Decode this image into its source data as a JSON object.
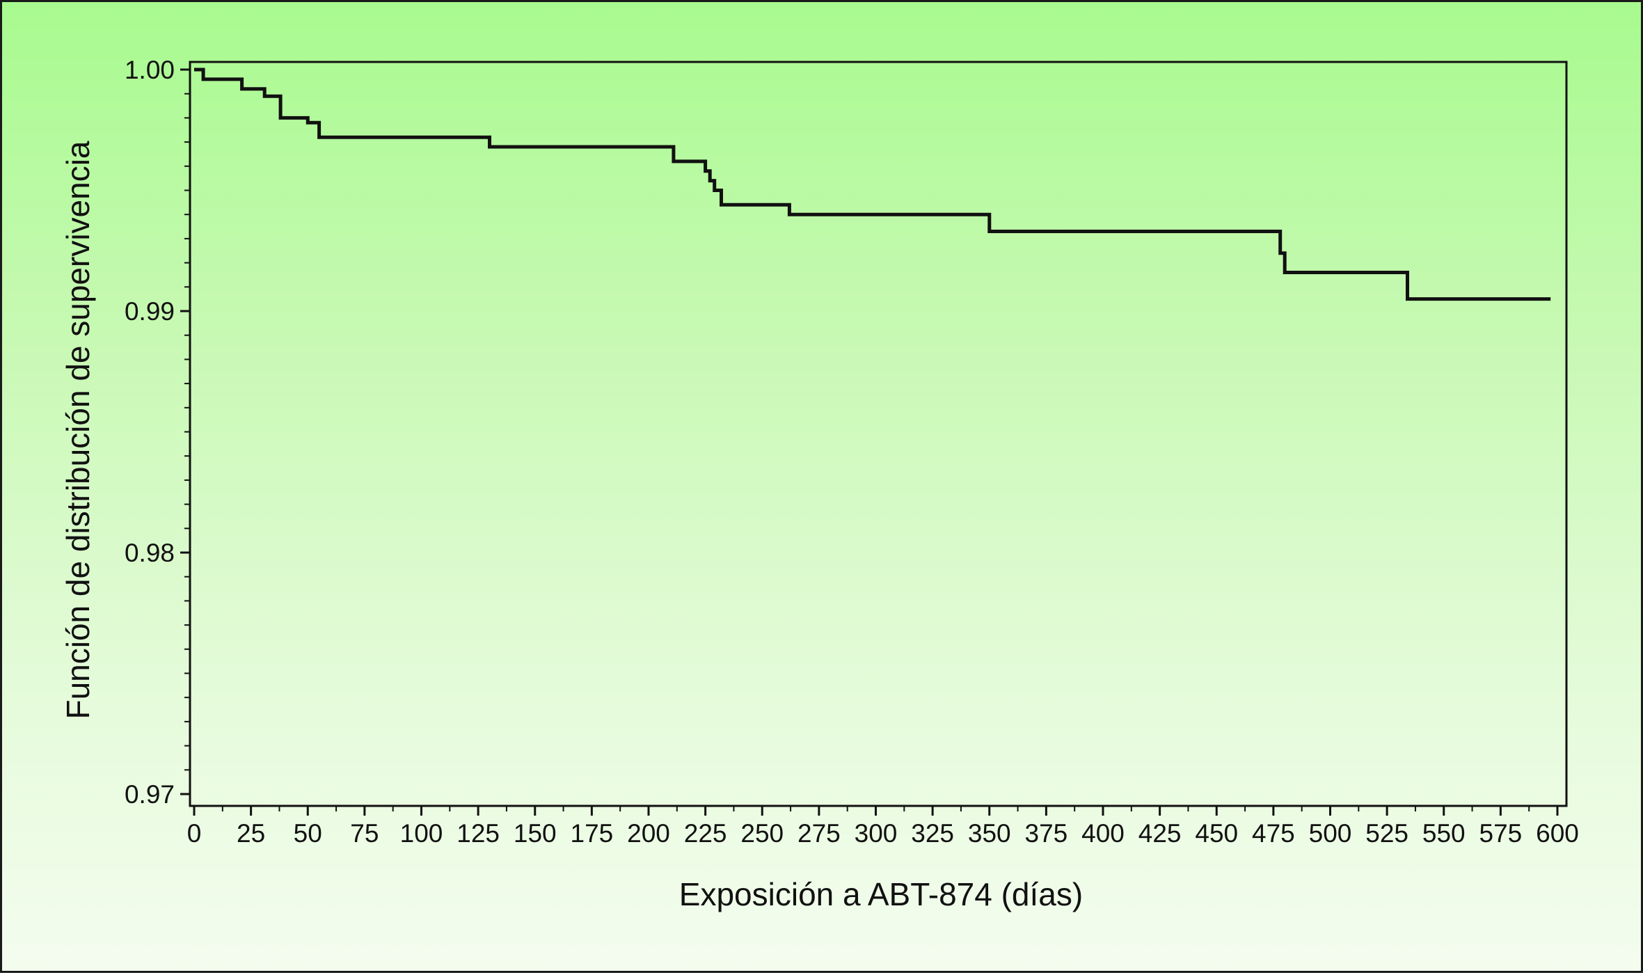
{
  "chart_data": {
    "type": "line",
    "step": true,
    "xlabel": "Exposición a ABT-874 (días)",
    "ylabel": "Función de distribución de supervivencia",
    "xlim": [
      0,
      600
    ],
    "ylim": [
      0.97,
      1.0
    ],
    "x_ticks": [
      0,
      25,
      50,
      75,
      100,
      125,
      150,
      175,
      200,
      225,
      250,
      275,
      300,
      325,
      350,
      375,
      400,
      425,
      450,
      475,
      500,
      525,
      550,
      575,
      600
    ],
    "x_tick_labels": [
      "0",
      "25",
      "50",
      "75",
      "100",
      "125",
      "150",
      "175",
      "200",
      "225",
      "250",
      "275",
      "300",
      "325",
      "350",
      "375",
      "400",
      "425",
      "450",
      "475",
      "500",
      "525",
      "550",
      "575",
      "600"
    ],
    "y_ticks": [
      0.97,
      0.98,
      0.99,
      1.0
    ],
    "y_tick_labels": [
      "0.97",
      "0.98",
      "0.99",
      "1.00"
    ],
    "grid": false,
    "legend": "none",
    "colors": {
      "line": "#111111",
      "background_top": "#a8fa8f",
      "background_bottom": "#f4fcef"
    },
    "series": [
      {
        "x": [
          0,
          4,
          21,
          31,
          38,
          50,
          55,
          130,
          211,
          225,
          227,
          229,
          232,
          262,
          350,
          478,
          480,
          534,
          597
        ],
        "y": [
          1.0,
          0.9996,
          0.9992,
          0.9989,
          0.998,
          0.9978,
          0.9972,
          0.9968,
          0.9962,
          0.9958,
          0.9954,
          0.995,
          0.9944,
          0.994,
          0.9933,
          0.9924,
          0.9916,
          0.9905,
          0.9905
        ]
      }
    ]
  }
}
